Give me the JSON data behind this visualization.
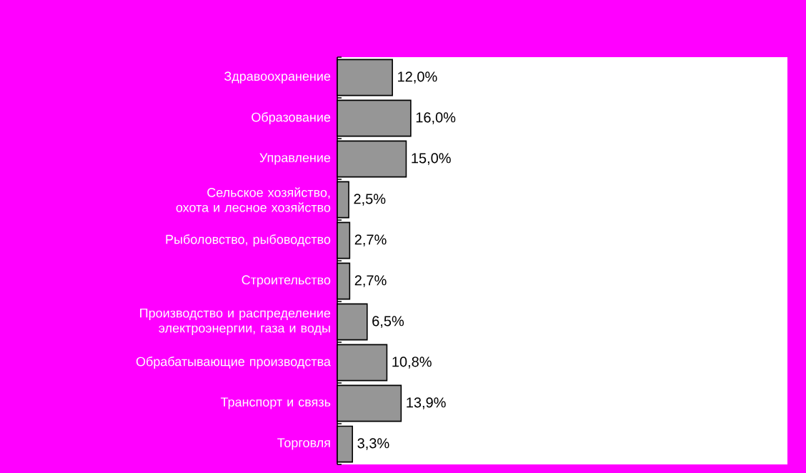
{
  "chart_data": {
    "type": "bar",
    "orientation": "horizontal",
    "color": "#969696",
    "categories": [
      "Здравоохранение",
      "Образование",
      "Управление",
      "Сельское хозяйство, охота и лесное хозяйство",
      "Рыболовство, рыбоводство",
      "Строительство",
      "Производство и распределение электроэнергии, газа и воды",
      "Обрабатывающие производства",
      "Транспорт и связь",
      "Торговля"
    ],
    "values": [
      12.0,
      16.0,
      15.0,
      2.5,
      2.7,
      2.7,
      6.5,
      10.8,
      13.9,
      3.3
    ],
    "value_labels": [
      "12,0%",
      "16,0%",
      "15,0%",
      "2,5%",
      "2,7%",
      "2,7%",
      "6,5%",
      "10,8%",
      "13,9%",
      "3,3%"
    ],
    "xlim": [
      0,
      98
    ],
    "tick_labels": "y"
  }
}
